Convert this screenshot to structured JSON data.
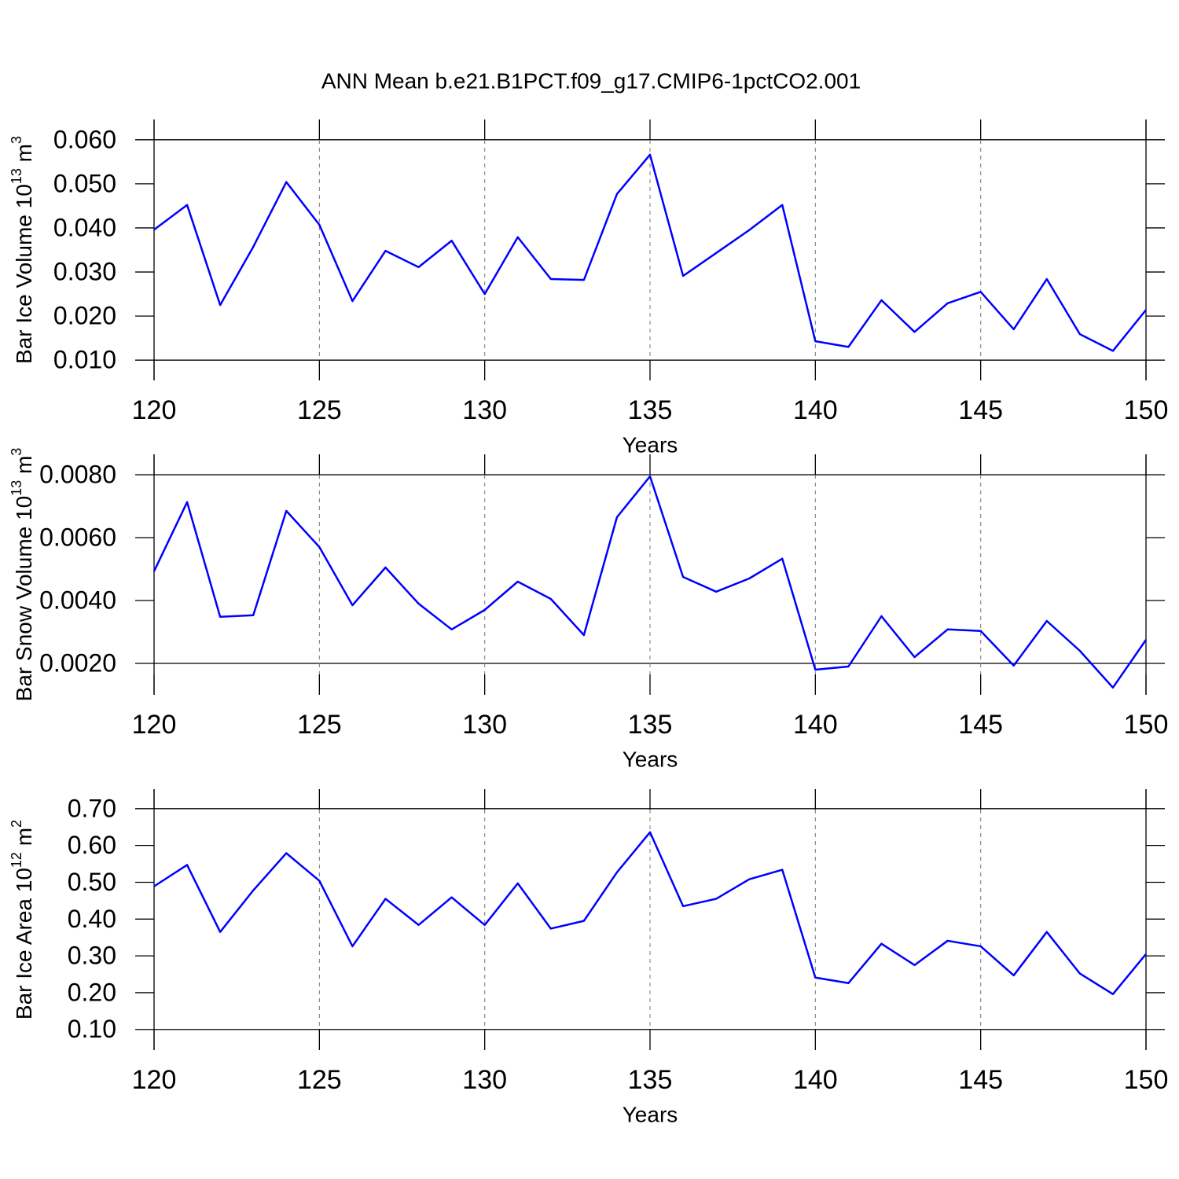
{
  "title": "ANN Mean b.e21.B1PCT.f09_g17.CMIP6-1pctCO2.001",
  "chart_data": [
    {
      "type": "line",
      "ylabel": [
        "Bar Ice Volume 10",
        "13",
        " m",
        "3"
      ],
      "xlabel": "Years",
      "color": "#0000ff",
      "xgrid": true,
      "x": [
        120,
        121,
        122,
        123,
        124,
        125,
        126,
        127,
        128,
        129,
        130,
        131,
        132,
        133,
        134,
        135,
        136,
        137,
        138,
        139,
        140,
        141,
        142,
        143,
        144,
        145,
        146,
        147,
        148,
        149,
        150
      ],
      "values": [
        0.0396,
        0.0452,
        0.0225,
        0.0357,
        0.0504,
        0.0407,
        0.0234,
        0.0348,
        0.0311,
        0.0371,
        0.025,
        0.0379,
        0.0284,
        0.0282,
        0.0477,
        0.0566,
        0.0291,
        0.0343,
        0.0395,
        0.0452,
        0.0143,
        0.013,
        0.0236,
        0.0164,
        0.0229,
        0.0255,
        0.017,
        0.0284,
        0.0159,
        0.0121,
        0.0214
      ],
      "xlim": [
        120,
        150
      ],
      "xticks": [
        120,
        125,
        130,
        135,
        140,
        145,
        150
      ],
      "ylim": [
        0.0054,
        0.0646
      ],
      "yticks": [
        {
          "value": 0.01,
          "label": "0.010"
        },
        {
          "value": 0.02,
          "label": "0.020"
        },
        {
          "value": 0.03,
          "label": "0.030"
        },
        {
          "value": 0.04,
          "label": "0.040"
        },
        {
          "value": 0.05,
          "label": "0.050"
        },
        {
          "value": 0.06,
          "label": "0.060"
        }
      ]
    },
    {
      "type": "line",
      "ylabel": [
        "Bar Snow Volume 10",
        "13",
        " m",
        "3"
      ],
      "xlabel": "Years",
      "color": "#0000ff",
      "xgrid": true,
      "x": [
        120,
        121,
        122,
        123,
        124,
        125,
        126,
        127,
        128,
        129,
        130,
        131,
        132,
        133,
        134,
        135,
        136,
        137,
        138,
        139,
        140,
        141,
        142,
        143,
        144,
        145,
        146,
        147,
        148,
        149,
        150
      ],
      "values": [
        0.00493,
        0.00713,
        0.00348,
        0.00353,
        0.00685,
        0.0057,
        0.00385,
        0.00505,
        0.0039,
        0.00308,
        0.0037,
        0.0046,
        0.00405,
        0.0029,
        0.00665,
        0.00795,
        0.00475,
        0.00428,
        0.0047,
        0.00533,
        0.0018,
        0.0019,
        0.0035,
        0.0022,
        0.00308,
        0.00303,
        0.00193,
        0.00335,
        0.0024,
        0.00123,
        0.00275
      ],
      "xlim": [
        120,
        150
      ],
      "xticks": [
        120,
        125,
        130,
        135,
        140,
        145,
        150
      ],
      "ylim": [
        0.001,
        0.00865
      ],
      "yticks": [
        {
          "value": 0.002,
          "label": "0.0020"
        },
        {
          "value": 0.004,
          "label": "0.0040"
        },
        {
          "value": 0.006,
          "label": "0.0060"
        },
        {
          "value": 0.008,
          "label": "0.0080"
        }
      ]
    },
    {
      "type": "line",
      "ylabel": [
        "Bar Ice Area 10",
        "12",
        " m",
        "2"
      ],
      "xlabel": "Years",
      "color": "#0000ff",
      "xgrid": true,
      "x": [
        120,
        121,
        122,
        123,
        124,
        125,
        126,
        127,
        128,
        129,
        130,
        131,
        132,
        133,
        134,
        135,
        136,
        137,
        138,
        139,
        140,
        141,
        142,
        143,
        144,
        145,
        146,
        147,
        148,
        149,
        150
      ],
      "values": [
        0.489,
        0.547,
        0.365,
        0.478,
        0.579,
        0.504,
        0.326,
        0.455,
        0.384,
        0.459,
        0.384,
        0.497,
        0.374,
        0.395,
        0.527,
        0.636,
        0.435,
        0.455,
        0.508,
        0.534,
        0.241,
        0.226,
        0.333,
        0.275,
        0.341,
        0.326,
        0.247,
        0.365,
        0.252,
        0.196,
        0.305
      ],
      "xlim": [
        120,
        150
      ],
      "xticks": [
        120,
        125,
        130,
        135,
        140,
        145,
        150
      ],
      "ylim": [
        0.044,
        0.753
      ],
      "yticks": [
        {
          "value": 0.1,
          "label": "0.10"
        },
        {
          "value": 0.2,
          "label": "0.20"
        },
        {
          "value": 0.3,
          "label": "0.30"
        },
        {
          "value": 0.4,
          "label": "0.40"
        },
        {
          "value": 0.5,
          "label": "0.50"
        },
        {
          "value": 0.6,
          "label": "0.60"
        },
        {
          "value": 0.7,
          "label": "0.70"
        }
      ]
    }
  ]
}
